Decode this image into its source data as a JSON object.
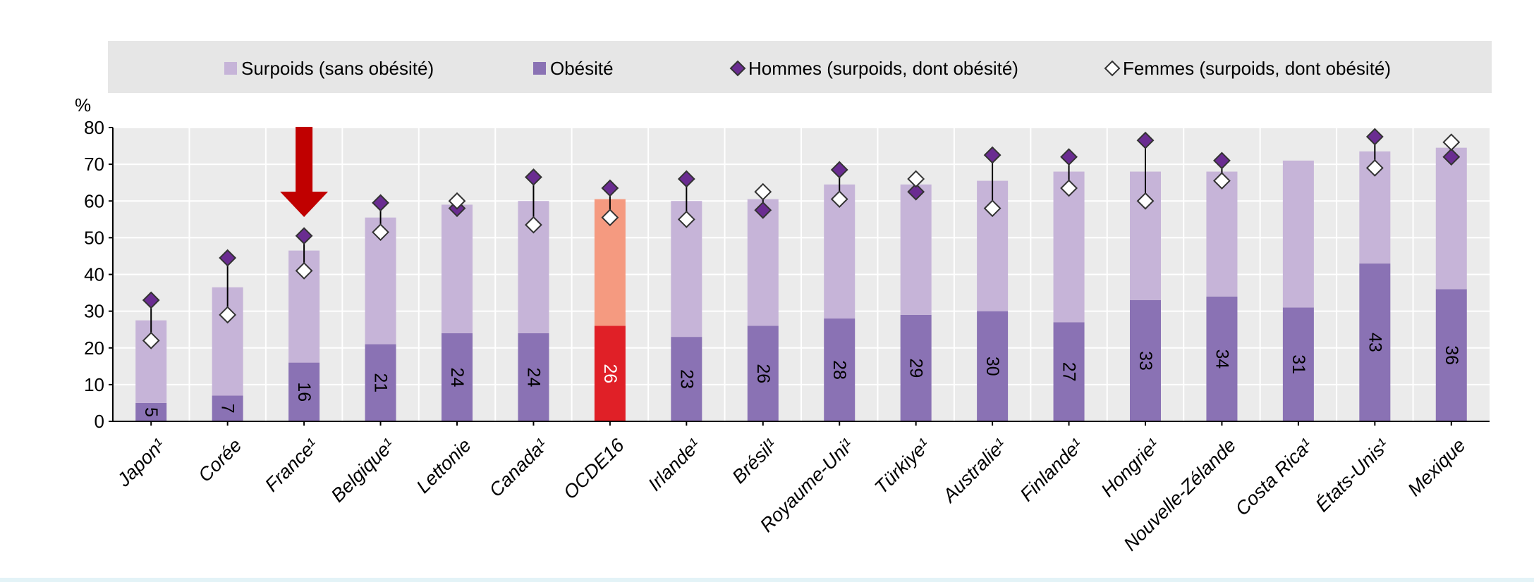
{
  "chart_data": {
    "type": "bar",
    "unit_label": "%",
    "ylim": [
      0,
      80
    ],
    "yticks": [
      "0",
      "10",
      "20",
      "30",
      "40",
      "50",
      "60",
      "70",
      "80"
    ],
    "grid": true,
    "legend_position": "top",
    "legend": [
      {
        "key": "overweight",
        "label": "Surpoids (sans obésité)",
        "marker": "square",
        "color": "#c6b4d8"
      },
      {
        "key": "obesity",
        "label": "Obésité",
        "marker": "square",
        "color": "#8a72b4"
      },
      {
        "key": "men",
        "label": "Hommes (surpoids, dont obésité)",
        "marker": "diamond-filled",
        "color": "#6a2c91"
      },
      {
        "key": "women",
        "label": "Femmes (surpoids, dont obésité)",
        "marker": "diamond-open",
        "color": "#ffffff"
      }
    ],
    "colors": {
      "overweight": "#c6b4d8",
      "obesity": "#8a72b4",
      "highlight_overweight": "#f59a80",
      "highlight_obesity": "#e02027",
      "men_marker": "#6a2c91",
      "women_marker": "#ffffff",
      "arrow": "#c00000",
      "grid_bg": "#ebebeb"
    },
    "highlight_category": "OCDE16",
    "arrow_category": "France¹",
    "categories": [
      "Japon¹",
      "Corée",
      "France¹",
      "Belgique¹",
      "Lettonie",
      "Canada¹",
      "OCDE16",
      "Irlande¹",
      "Brésil¹",
      "Royaume-Uni¹",
      "Türkiye¹",
      "Australie¹",
      "Finlande¹",
      "Hongrie¹",
      "Nouvelle-Zélande",
      "Costa Rica¹",
      "États-Unis¹",
      "Mexique"
    ],
    "series": [
      {
        "name": "Obésité",
        "values": [
          5,
          7,
          16,
          21,
          24,
          24,
          26,
          23,
          26,
          28,
          29,
          30,
          27,
          33,
          34,
          31,
          43,
          36
        ]
      },
      {
        "name": "Surpoids (sans obésité)",
        "values": [
          22.5,
          29.5,
          30.5,
          34.5,
          35,
          36,
          34.5,
          37,
          34.5,
          36.5,
          35.5,
          35.5,
          41,
          35,
          34,
          40,
          30.5,
          38.5
        ]
      },
      {
        "name": "Hommes (surpoids, dont obésité)",
        "values": [
          33,
          44.5,
          50.5,
          59.5,
          58,
          66.5,
          63.5,
          66,
          57.5,
          68.5,
          62.5,
          72.5,
          72,
          76.5,
          71,
          null,
          77.5,
          72
        ]
      },
      {
        "name": "Femmes (surpoids, dont obésité)",
        "values": [
          22,
          29,
          41,
          51.5,
          60,
          53.5,
          55.5,
          55,
          62.5,
          60.5,
          66,
          58,
          63.5,
          60,
          65.5,
          null,
          69,
          76
        ]
      }
    ],
    "data_labels": [
      "5",
      "7",
      "16",
      "21",
      "24",
      "24",
      "26",
      "23",
      "26",
      "28",
      "29",
      "30",
      "27",
      "33",
      "34",
      "31",
      "43",
      "36"
    ]
  }
}
